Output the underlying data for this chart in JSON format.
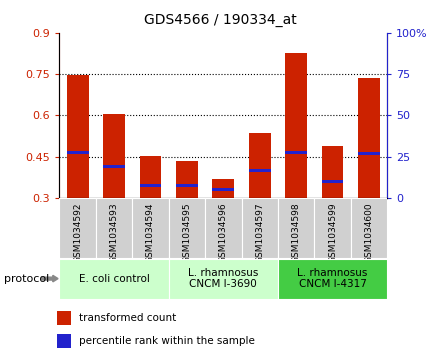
{
  "title": "GDS4566 / 190334_at",
  "samples": [
    "GSM1034592",
    "GSM1034593",
    "GSM1034594",
    "GSM1034595",
    "GSM1034596",
    "GSM1034597",
    "GSM1034598",
    "GSM1034599",
    "GSM1034600"
  ],
  "transformed_count": [
    0.745,
    0.605,
    0.453,
    0.435,
    0.368,
    0.535,
    0.825,
    0.49,
    0.735
  ],
  "percentile_rank": [
    0.465,
    0.415,
    0.345,
    0.345,
    0.33,
    0.4,
    0.465,
    0.36,
    0.46
  ],
  "bar_bottom": 0.3,
  "ylim_left": [
    0.3,
    0.9
  ],
  "ylim_right": [
    0.0,
    100.0
  ],
  "yticks_left": [
    0.3,
    0.45,
    0.6,
    0.75,
    0.9
  ],
  "yticks_right": [
    0,
    25,
    50,
    75,
    100
  ],
  "red_color": "#cc2200",
  "blue_color": "#2222cc",
  "bar_width": 0.6,
  "groups": [
    {
      "label": "E. coli control",
      "start": 0,
      "end": 3,
      "color": "#ccffcc"
    },
    {
      "label": "L. rhamnosus\nCNCM I-3690",
      "start": 3,
      "end": 6,
      "color": "#ccffcc"
    },
    {
      "label": "L. rhamnosus\nCNCM I-4317",
      "start": 6,
      "end": 9,
      "color": "#44cc44"
    }
  ],
  "group_colors": [
    "#ccffcc",
    "#ccffcc",
    "#44cc44"
  ],
  "protocol_label": "protocol",
  "legend_red": "transformed count",
  "legend_blue": "percentile rank within the sample",
  "tick_label_color_left": "#cc2200",
  "tick_label_color_right": "#2222cc",
  "percentile_bar_height": 0.012,
  "sample_box_color": "#d0d0d0",
  "grid_color": "black",
  "grid_style": ":"
}
